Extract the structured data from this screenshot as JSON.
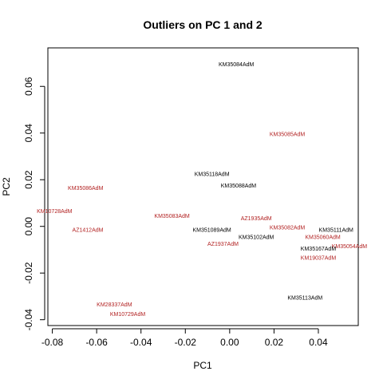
{
  "chart_data": {
    "type": "scatter",
    "title": "Outliers on PC 1 and 2",
    "xlabel": "PC1",
    "ylabel": "PC2",
    "xlim": [
      -0.082,
      0.058
    ],
    "ylim": [
      -0.0425,
      0.0765
    ],
    "xticks": [
      -0.08,
      -0.06,
      -0.04,
      -0.02,
      0.0,
      0.02,
      0.04
    ],
    "xtick_labels": [
      "-0.08",
      "-0.06",
      "-0.04",
      "-0.02",
      "0.00",
      "0.02",
      "0.04"
    ],
    "yticks": [
      -0.04,
      -0.02,
      0.0,
      0.02,
      0.04,
      0.06
    ],
    "ytick_labels": [
      "-0.04",
      "-0.02",
      "0.00",
      "0.02",
      "0.04",
      "0.06"
    ],
    "grid": false,
    "legend": "none",
    "colors": {
      "black": "#000000",
      "red": "#b22222"
    },
    "points": [
      {
        "label": "KM35084AdM",
        "x": 0.003,
        "y": 0.0695,
        "color": "black"
      },
      {
        "label": "KM35085AdM",
        "x": 0.026,
        "y": 0.0395,
        "color": "red"
      },
      {
        "label": "KM35118AdM",
        "x": -0.008,
        "y": 0.0225,
        "color": "black"
      },
      {
        "label": "KM35086AdM",
        "x": -0.065,
        "y": 0.0165,
        "color": "red"
      },
      {
        "label": "KM35088AdM",
        "x": 0.004,
        "y": 0.0175,
        "color": "black"
      },
      {
        "label": "KM10728AdM",
        "x": -0.079,
        "y": 0.0065,
        "color": "red"
      },
      {
        "label": "KM35083AdM",
        "x": -0.026,
        "y": 0.0045,
        "color": "red"
      },
      {
        "label": "AZ1935AdM",
        "x": 0.012,
        "y": 0.0035,
        "color": "red"
      },
      {
        "label": "KM35082AdM",
        "x": 0.026,
        "y": -0.0005,
        "color": "red"
      },
      {
        "label": "KM35111AdM",
        "x": 0.048,
        "y": -0.0015,
        "color": "black"
      },
      {
        "label": "AZ1412AdM",
        "x": -0.064,
        "y": -0.0015,
        "color": "red"
      },
      {
        "label": "KM351089AdM",
        "x": -0.008,
        "y": -0.0015,
        "color": "black"
      },
      {
        "label": "KM35102AdM",
        "x": 0.012,
        "y": -0.0045,
        "color": "black"
      },
      {
        "label": "KM35060AdM",
        "x": 0.042,
        "y": -0.0045,
        "color": "red"
      },
      {
        "label": "AZ1937AdM",
        "x": -0.003,
        "y": -0.0075,
        "color": "red"
      },
      {
        "label": "KM35054AdM",
        "x": 0.054,
        "y": -0.0085,
        "color": "red"
      },
      {
        "label": "KM35167AdM",
        "x": 0.04,
        "y": -0.0095,
        "color": "black"
      },
      {
        "label": "KM19037AdM",
        "x": 0.04,
        "y": -0.0135,
        "color": "red"
      },
      {
        "label": "KM35113AdM",
        "x": 0.034,
        "y": -0.0305,
        "color": "black"
      },
      {
        "label": "KM28337AdM",
        "x": -0.052,
        "y": -0.0335,
        "color": "red"
      },
      {
        "label": "KM10729AdM",
        "x": -0.046,
        "y": -0.0375,
        "color": "red"
      }
    ]
  }
}
